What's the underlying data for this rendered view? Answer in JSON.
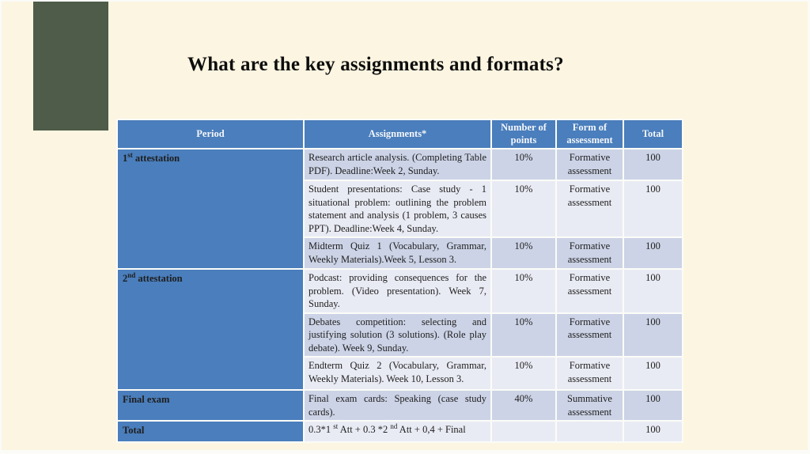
{
  "colors": {
    "background": "#fcf5e1",
    "accent_green": "#4e5c49",
    "header_blue": "#4a7ebc",
    "band_dark": "#ccd3e6",
    "band_light": "#e9ebf4"
  },
  "slide": {
    "title": "What are the key assignments and formats?"
  },
  "table": {
    "header": {
      "period": "Period",
      "assignments": "Assignments*",
      "points": "Number of points",
      "form": "Form of assessment",
      "total": "Total"
    },
    "sections": [
      {
        "period": "1^{st} attestation",
        "rows": [
          {
            "assignment": "Research article analysis. (Completing Table PDF). Deadline:Week 2,  Sunday.",
            "points": "10%",
            "form": "Formative assessment",
            "total": "100"
          },
          {
            "assignment": "Student presentations: Case study - 1 situational problem: outlining the problem statement and analysis  (1 problem, 3 causes PPT). Deadline:Week 4,  Sunday.",
            "points": "10%",
            "form": "Formative assessment",
            "total": "100"
          },
          {
            "assignment": "Midterm Quiz 1 (Vocabulary, Grammar, Weekly Materials).Week 5, Lesson 3.",
            "points": "10%",
            "form": "Formative assessment",
            "total": "100"
          }
        ]
      },
      {
        "period": "2^{nd} attestation",
        "rows": [
          {
            "assignment": "Podcast: providing consequences for the problem. (Video presentation). Week 7, Sunday.",
            "points": "10%",
            "form": "Formative assessment",
            "total": "100"
          },
          {
            "assignment": "Debates competition: selecting and justifying solution (3 solutions). (Role play debate). Week 9, Sunday.",
            "points": "10%",
            "form": "Formative assessment",
            "total": "100"
          },
          {
            "assignment": "Endterm Quiz 2 (Vocabulary, Grammar, Weekly Materials). Week 10, Lesson 3.",
            "points": "10%",
            "form": "Formative assessment",
            "total": "100"
          }
        ]
      },
      {
        "period": "Final exam",
        "rows": [
          {
            "assignment": "Final exam cards: Speaking (case study cards).",
            "points": "40%",
            "form": "Summative assessment",
            "total": "100"
          }
        ]
      },
      {
        "period": "Total",
        "rows": [
          {
            "assignment": "0.3*1 ^{st} Att + 0.3 *2 ^{nd} Att + 0,4 + Final",
            "points": "",
            "form": "",
            "total": "100"
          }
        ]
      }
    ]
  }
}
